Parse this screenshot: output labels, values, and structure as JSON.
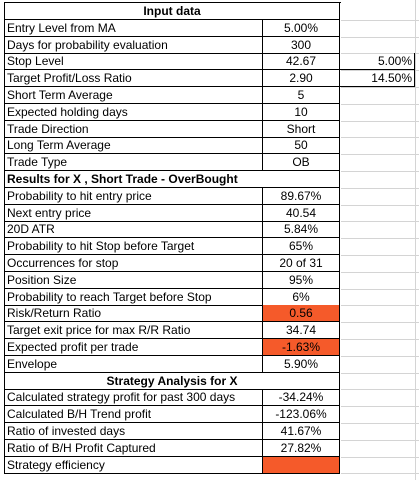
{
  "sheet": {
    "sections": [
      {
        "title": "Input data",
        "rows": [
          {
            "label": "Entry Level from MA",
            "value": "5.00%"
          },
          {
            "label": "Days for probability evaluation",
            "value": "300"
          },
          {
            "label": "Stop Level",
            "value": "42.67",
            "extra": "5.00%"
          },
          {
            "label": "Target Profit/Loss Ratio",
            "value": "2.90",
            "extra": "14.50%"
          },
          {
            "label": "Short Term Average",
            "value": "5"
          },
          {
            "label": "Expected holding days",
            "value": "10"
          },
          {
            "label": "Trade Direction",
            "value": "Short"
          },
          {
            "label": "Long Term Average",
            "value": "50"
          },
          {
            "label": "Trade Type",
            "value": "OB"
          }
        ]
      },
      {
        "title": "Results for X , Short Trade - OverBought",
        "left_aligned_title": true,
        "rows": [
          {
            "label": "Probability to hit entry price",
            "value": "89.67%"
          },
          {
            "label": "Next entry price",
            "value": "40.54"
          },
          {
            "label": "20D ATR",
            "value": "5.84%"
          },
          {
            "label": "Probability to hit Stop before Target",
            "value": "65%"
          },
          {
            "label": "Occurrences for stop",
            "value": "20 of 31"
          },
          {
            "label": "Position Size",
            "value": "95%"
          },
          {
            "label": "Probability to reach Target before Stop",
            "value": "6%"
          },
          {
            "label": "Risk/Return Ratio",
            "value": "0.56",
            "highlight": "#f55a2a"
          },
          {
            "label": "Target exit price for max R/R Ratio",
            "value": "34.74"
          },
          {
            "label": "Expected profit per trade",
            "value": "-1.63%",
            "highlight": "#f55a2a"
          },
          {
            "label": "Envelope",
            "value": "5.90%"
          }
        ]
      },
      {
        "title": "Strategy Analysis for X",
        "rows": [
          {
            "label": "Calculated strategy profit for past 300 days",
            "value": "-34.24%"
          },
          {
            "label": "Calculated B/H Trend profit",
            "value": "-123.06%"
          },
          {
            "label": "Ratio of invested days",
            "value": "41.67%"
          },
          {
            "label": "Ratio of B/H Profit Captured",
            "value": "27.82%"
          },
          {
            "label": "Strategy efficiency",
            "value": "",
            "highlight": "#f55a2a"
          }
        ]
      }
    ]
  }
}
